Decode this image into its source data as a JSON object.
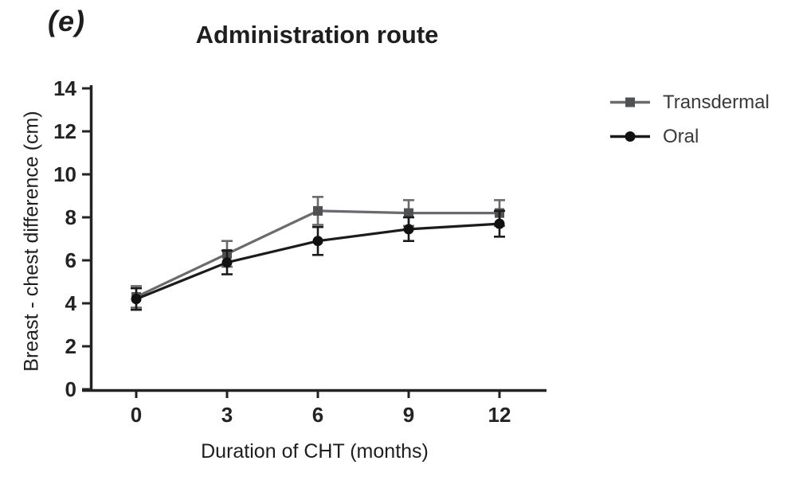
{
  "panel_label": "(e)",
  "chart_data": {
    "type": "line",
    "title": "Administration route",
    "xlabel": "Duration of CHT (months)",
    "ylabel": "Breast - chest difference (cm)",
    "x": [
      0,
      3,
      6,
      9,
      12
    ],
    "xticks": [
      0,
      3,
      6,
      9,
      12
    ],
    "yticks": [
      0,
      2,
      4,
      6,
      8,
      10,
      12,
      14
    ],
    "ylim": [
      0,
      14
    ],
    "xlim": [
      0,
      12
    ],
    "grid": false,
    "legend_position": "right",
    "error_bars": true,
    "series": [
      {
        "name": "Transdermal",
        "marker": "square",
        "color": "#6a6b6e",
        "marker_color": "#505153",
        "values": [
          4.3,
          6.3,
          8.3,
          8.2,
          8.2
        ],
        "errors": [
          0.5,
          0.6,
          0.65,
          0.6,
          0.6
        ]
      },
      {
        "name": "Oral",
        "marker": "circle",
        "color": "#1b1b1b",
        "marker_color": "#111111",
        "values": [
          4.2,
          5.9,
          6.9,
          7.45,
          7.7
        ],
        "errors": [
          0.5,
          0.55,
          0.65,
          0.55,
          0.6
        ]
      }
    ]
  },
  "colors": {
    "axis": "#232323",
    "text": "#1e1e1e",
    "background": "#ffffff"
  }
}
